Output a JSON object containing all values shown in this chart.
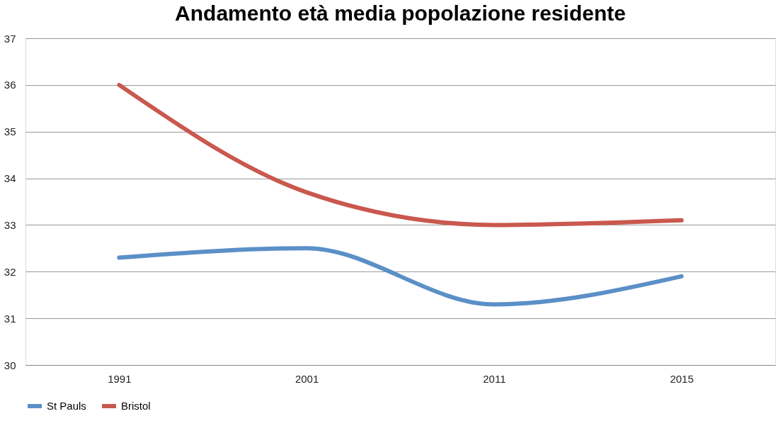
{
  "chart_data": {
    "type": "line",
    "title": "Andamento età media popolazione residente",
    "categories": [
      "1991",
      "2001",
      "2011",
      "2015"
    ],
    "series": [
      {
        "name": "St Pauls",
        "color": "#5b8fc7",
        "values": [
          32.3,
          32.5,
          31.3,
          31.9
        ]
      },
      {
        "name": "Bristol",
        "color": "#c9584e",
        "values": [
          36.0,
          33.7,
          33.0,
          33.1
        ]
      }
    ],
    "ylim": [
      30,
      37
    ],
    "yticks": [
      30,
      31,
      32,
      33,
      34,
      35,
      36,
      37
    ],
    "grid": "y",
    "legend": "bottom",
    "marker": "none",
    "line_style": "solid"
  }
}
